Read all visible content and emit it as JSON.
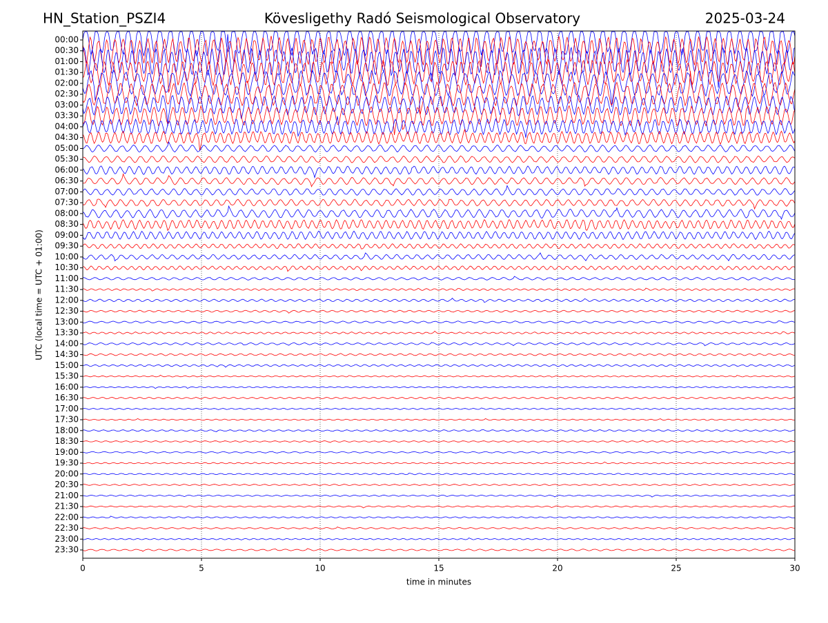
{
  "chart_data": {
    "type": "helicorder",
    "title": "Kövesligethy Radó Seismological Observatory",
    "station": "HN_Station_PSZI4",
    "date": "2025-03-24",
    "ylabel": "UTC (local time = UTC + 01:00)",
    "xlabel": "time in minutes",
    "categories": [
      "00:00",
      "00:30",
      "01:00",
      "01:30",
      "02:00",
      "02:30",
      "03:00",
      "03:30",
      "04:00",
      "04:30",
      "05:00",
      "05:30",
      "06:00",
      "06:30",
      "07:00",
      "07:30",
      "08:00",
      "08:30",
      "09:00",
      "09:30",
      "10:00",
      "10:30",
      "11:00",
      "11:30",
      "12:00",
      "12:30",
      "13:00",
      "13:30",
      "14:00",
      "14:30",
      "15:00",
      "15:30",
      "16:00",
      "16:30",
      "17:00",
      "17:30",
      "18:00",
      "18:30",
      "19:00",
      "19:30",
      "20:00",
      "20:30",
      "21:00",
      "21:30",
      "22:00",
      "22:30",
      "23:00",
      "23:30"
    ],
    "amplitudes": [
      1.8,
      1.8,
      1.8,
      1.6,
      1.5,
      1.4,
      1.2,
      1.2,
      1.0,
      0.8,
      0.4,
      0.4,
      0.5,
      0.4,
      0.4,
      0.4,
      0.5,
      0.6,
      0.5,
      0.3,
      0.3,
      0.25,
      0.15,
      0.12,
      0.15,
      0.12,
      0.12,
      0.12,
      0.12,
      0.12,
      0.12,
      0.08,
      0.08,
      0.1,
      0.08,
      0.08,
      0.1,
      0.08,
      0.08,
      0.08,
      0.08,
      0.08,
      0.08,
      0.08,
      0.08,
      0.08,
      0.08,
      0.1
    ],
    "colors": [
      "#0000ff",
      "#ff0000"
    ],
    "xlim": [
      0,
      30
    ],
    "xticks": [
      0,
      5,
      10,
      15,
      20,
      25,
      30
    ],
    "grid": true
  }
}
